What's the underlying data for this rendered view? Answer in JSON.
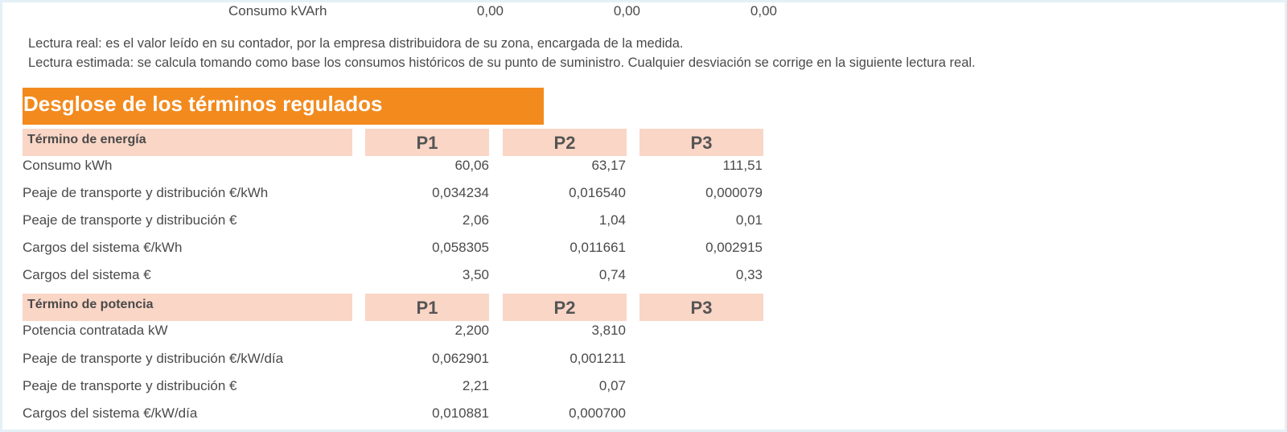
{
  "reactive": {
    "label": "Consumo kVArh",
    "values": [
      "0,00",
      "0,00",
      "0,00"
    ]
  },
  "notes": {
    "real": "Lectura real: es el valor leído en su contador, por la empresa distribuidora de su zona, encargada de la medida.",
    "estimada": "Lectura estimada: se calcula tomando como base los consumos históricos de su punto de suministro. Cualquier desviación se corrige en la siguiente lectura real."
  },
  "section": {
    "title": "Desglose de los términos regulados"
  },
  "energia": {
    "header": "Término de energía",
    "columns": [
      "P1",
      "P2",
      "P3"
    ],
    "rows": [
      {
        "label": "Consumo kWh",
        "values": [
          "60,06",
          "63,17",
          "111,51"
        ]
      },
      {
        "label": "Peaje de transporte y distribución €/kWh",
        "values": [
          "0,034234",
          "0,016540",
          "0,000079"
        ]
      },
      {
        "label": "Peaje de transporte y distribución €",
        "values": [
          "2,06",
          "1,04",
          "0,01"
        ]
      },
      {
        "label": "Cargos del sistema €/kWh",
        "values": [
          "0,058305",
          "0,011661",
          "0,002915"
        ]
      },
      {
        "label": "Cargos del sistema €",
        "values": [
          "3,50",
          "0,74",
          "0,33"
        ]
      }
    ]
  },
  "potencia": {
    "header": "Término de potencia",
    "columns": [
      "P1",
      "P2",
      "P3"
    ],
    "rows": [
      {
        "label": "Potencia contratada kW",
        "values": [
          "2,200",
          "3,810",
          ""
        ]
      },
      {
        "label": "Peaje de transporte y distribución €/kW/día",
        "values": [
          "0,062901",
          "0,001211",
          ""
        ]
      },
      {
        "label": "Peaje de transporte y distribución €",
        "values": [
          "2,21",
          "0,07",
          ""
        ]
      },
      {
        "label": "Cargos del sistema €/kW/día",
        "values": [
          "0,010881",
          "0,000700",
          ""
        ]
      }
    ]
  }
}
